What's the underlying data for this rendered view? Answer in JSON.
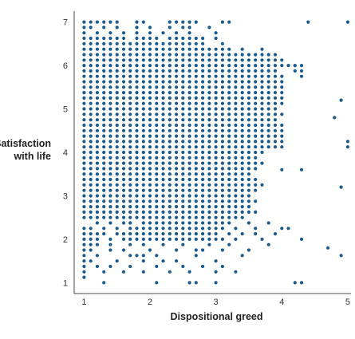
{
  "chart_data": {
    "type": "scatter",
    "xlabel": "Dispositional greed",
    "ylabel_lines": [
      "Satisfaction",
      "with life"
    ],
    "xlim": [
      0.85,
      5.05
    ],
    "ylim": [
      0.75,
      7.25
    ],
    "x_ticks": [
      1,
      2,
      3,
      4,
      5
    ],
    "y_ticks": [
      1,
      2,
      3,
      4,
      5,
      6,
      7
    ],
    "grid": false,
    "point_color": "#1a5a8a",
    "axis_color": "#444444",
    "dense_region": {
      "description": "near-uniform dot grid over the main mass",
      "x_start": 1.0,
      "x_step": 0.1,
      "y_start": 1.25,
      "y_step": 0.125,
      "rows": [
        {
          "y": 1.25,
          "x": [
            1.0,
            1.3,
            1.6,
            1.9,
            2.3,
            2.6,
            3.0,
            3.3
          ]
        },
        {
          "y": 1.375,
          "x": [
            1.0,
            1.2,
            1.4,
            1.7,
            2.1,
            2.5,
            2.8,
            3.1
          ]
        },
        {
          "y": 1.5,
          "x": [
            1.0,
            1.1,
            1.5,
            1.9,
            2.2,
            2.4,
            3.0
          ]
        },
        {
          "y": 1.625,
          "x": [
            1.0,
            1.2,
            1.7,
            1.8,
            1.9,
            2.1,
            2.7,
            3.4
          ]
        },
        {
          "y": 1.75,
          "x": [
            1.0,
            1.1,
            1.4,
            1.6,
            2.0,
            2.4,
            2.7,
            2.8,
            3.1,
            3.5
          ]
        },
        {
          "y": 1.875,
          "x": [
            1.0,
            1.1,
            1.2,
            1.4,
            1.7,
            1.9,
            2.2,
            2.5,
            2.9,
            3.2,
            3.8
          ]
        },
        {
          "y": 2.0,
          "x": [
            1.0,
            1.1,
            1.2,
            1.4,
            1.6,
            1.7,
            1.8,
            1.9,
            2.0,
            2.1,
            2.2,
            2.3,
            2.4,
            2.5,
            2.6,
            2.7,
            2.8,
            2.9,
            3.0,
            3.1,
            3.3,
            3.7,
            4.3
          ]
        },
        {
          "y": 2.125,
          "x": [
            1.0,
            1.1,
            1.2,
            1.3,
            1.5,
            1.6,
            1.7,
            1.8,
            1.9,
            2.0,
            2.1,
            2.2,
            2.3,
            2.4,
            2.5,
            2.6,
            2.7,
            2.8,
            2.9,
            3.0,
            3.2,
            3.4,
            3.6,
            3.9
          ]
        },
        {
          "y": 2.25,
          "x": [
            1.0,
            1.1,
            1.3,
            1.5,
            1.7,
            1.8,
            1.9,
            2.0,
            2.1,
            2.2,
            2.3,
            2.4,
            2.5,
            2.6,
            2.7,
            2.8,
            2.9,
            3.0,
            3.1,
            3.3,
            3.6,
            4.0
          ]
        },
        {
          "y": 2.375,
          "x": [
            1.2,
            1.4,
            1.6,
            1.7,
            1.9,
            2.0,
            2.1,
            2.2,
            2.3,
            2.4,
            2.5,
            2.6,
            2.7,
            2.8,
            2.9,
            3.0,
            3.1,
            3.2,
            3.5,
            3.8
          ]
        }
      ],
      "full_rows_from": 2.5,
      "full_rows_to": 6.25,
      "row_right_edges": {
        "2.5": 3.4,
        "2.625": 3.6,
        "2.75": 3.5,
        "2.875": 3.6,
        "3.0": 3.5,
        "3.125": 3.6,
        "3.25": 3.7,
        "3.375": 3.6,
        "3.5": 3.5,
        "3.625": 3.6,
        "3.75": 3.7,
        "3.875": 3.6,
        "4.0": 3.7,
        "4.125": 4.0,
        "4.25": 4.0,
        "4.375": 4.0,
        "4.5": 4.0,
        "4.625": 4.0,
        "4.75": 3.9,
        "4.875": 4.0,
        "5.0": 3.9,
        "5.125": 3.9,
        "5.25": 4.0,
        "5.375": 4.0,
        "5.5": 4.0,
        "5.625": 4.0,
        "5.75": 4.0,
        "5.875": 3.9,
        "6.0": 4.0,
        "6.125": 4.0,
        "6.25": 3.9
      },
      "top_rows": [
        {
          "y": 6.375,
          "x": [
            1.0,
            1.1,
            1.2,
            1.3,
            1.4,
            1.5,
            1.6,
            1.7,
            1.8,
            1.9,
            2.0,
            2.1,
            2.2,
            2.3,
            2.4,
            2.5,
            2.6,
            2.7,
            2.8,
            2.9,
            3.0,
            3.1,
            3.2,
            3.4,
            3.7
          ]
        },
        {
          "y": 6.5,
          "x": [
            1.0,
            1.1,
            1.2,
            1.3,
            1.4,
            1.5,
            1.6,
            1.7,
            1.8,
            1.9,
            2.0,
            2.1,
            2.2,
            2.3,
            2.4,
            2.5,
            2.6,
            2.7,
            2.8,
            3.1
          ]
        },
        {
          "y": 6.625,
          "x": [
            1.0,
            1.1,
            1.2,
            1.3,
            1.4,
            1.5,
            1.6,
            1.8,
            1.9,
            2.0,
            2.1,
            2.3,
            2.4,
            2.5,
            2.6,
            2.7,
            2.8,
            3.0
          ]
        },
        {
          "y": 6.75,
          "x": [
            1.0,
            1.2,
            1.4,
            1.6,
            1.8,
            2.0,
            2.2,
            2.4,
            2.6,
            3.0
          ]
        },
        {
          "y": 6.875,
          "x": [
            1.0,
            1.1,
            1.3,
            1.5,
            1.8,
            2.0,
            2.3,
            2.5,
            2.6,
            2.9
          ]
        },
        {
          "y": 7.0,
          "x": [
            1.0,
            1.1,
            1.2,
            1.3,
            1.4,
            1.5,
            1.8,
            1.9,
            2.3,
            2.4,
            2.5,
            2.6,
            2.7,
            3.1,
            3.2,
            4.4,
            5.0
          ]
        }
      ]
    },
    "outliers": [
      {
        "x": 4.1,
        "y": 6.0
      },
      {
        "x": 4.2,
        "y": 6.0
      },
      {
        "x": 4.3,
        "y": 6.0
      },
      {
        "x": 4.2,
        "y": 5.875
      },
      {
        "x": 4.3,
        "y": 5.875
      },
      {
        "x": 4.3,
        "y": 5.75
      },
      {
        "x": 4.0,
        "y": 5.125
      },
      {
        "x": 4.9,
        "y": 5.2
      },
      {
        "x": 4.8,
        "y": 4.8
      },
      {
        "x": 5.0,
        "y": 4.25
      },
      {
        "x": 5.0,
        "y": 4.125
      },
      {
        "x": 4.3,
        "y": 3.6
      },
      {
        "x": 4.0,
        "y": 3.6
      },
      {
        "x": 4.9,
        "y": 3.2
      },
      {
        "x": 4.1,
        "y": 2.25
      },
      {
        "x": 4.7,
        "y": 1.8
      },
      {
        "x": 4.9,
        "y": 1.625
      },
      {
        "x": 4.3,
        "y": 1.0
      },
      {
        "x": 4.2,
        "y": 1.0
      },
      {
        "x": 2.6,
        "y": 1.0
      },
      {
        "x": 2.7,
        "y": 1.0
      },
      {
        "x": 3.0,
        "y": 1.0
      },
      {
        "x": 1.3,
        "y": 1.0
      },
      {
        "x": 2.1,
        "y": 1.0
      },
      {
        "x": 1.0,
        "y": 1.125
      }
    ]
  }
}
